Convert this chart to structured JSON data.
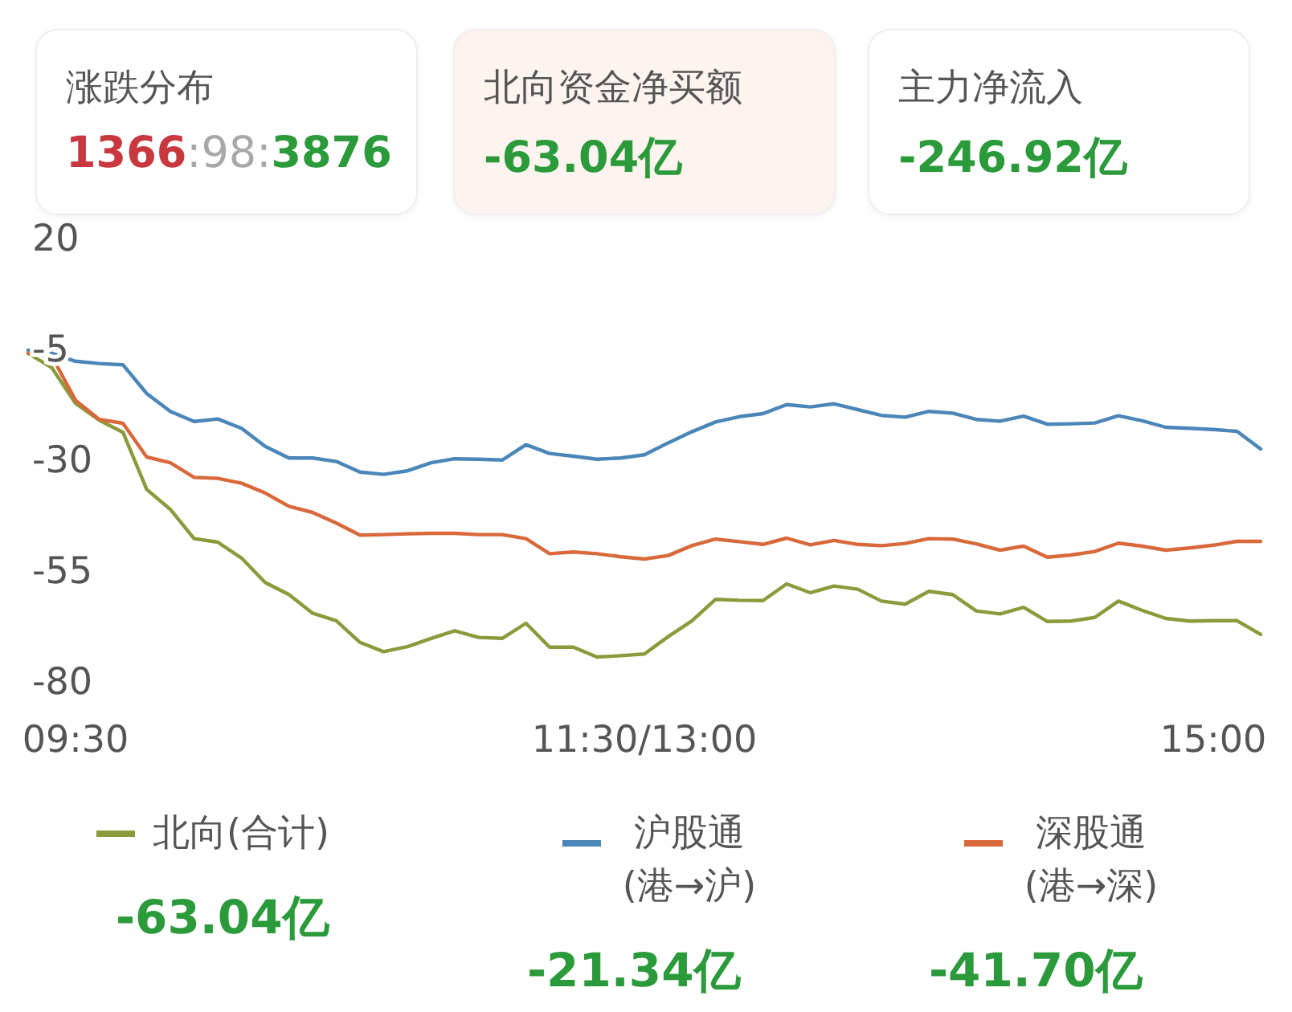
{
  "chart_data": [
    {
      "type": "other",
      "title": "涨跌分布",
      "annotations": [
        "1366",
        ":98:",
        "3876"
      ]
    },
    {
      "type": "other",
      "title": "北向资金净买额",
      "annotations": [
        "-63.04亿"
      ]
    },
    {
      "type": "other",
      "title": "主力净流入",
      "annotations": [
        "-246.92亿"
      ]
    },
    {
      "type": "line",
      "categories": [
        null,
        null,
        "09:30",
        null,
        null,
        null,
        null,
        null,
        null,
        null,
        null,
        null,
        null,
        null,
        null,
        null,
        null,
        null,
        null,
        null,
        null,
        null,
        null,
        null,
        null,
        null,
        "11:30/13:00",
        null,
        null,
        null,
        null,
        null,
        null,
        null,
        null,
        null,
        null,
        null,
        null,
        null,
        null,
        null,
        null,
        null,
        null,
        null,
        null,
        null,
        null,
        null,
        "15:00",
        null,
        null
      ],
      "ylim": [
        -80,
        20
      ],
      "yticks": [
        20,
        -5,
        -30,
        -55,
        -80
      ],
      "legend": "bottom",
      "marker": "none",
      "line_style": "solid",
      "annotations": [
        "-63.04亿",
        "-21.34亿",
        "-41.70亿"
      ],
      "series": [
        {
          "name": "北向(合计)",
          "color": "#8c9a3c",
          "values": [
            -5.7,
            -9.0,
            -17.0,
            -20.8,
            -23.5,
            -36.4,
            -40.9,
            -47.5,
            -48.3,
            -51.9,
            -57.4,
            -60.1,
            -64.3,
            -66.0,
            -70.9,
            -73.0,
            -71.9,
            -70.0,
            -68.3,
            -69.8,
            -70.0,
            -66.6,
            -72.0,
            -72.0,
            -74.2,
            -73.9,
            -73.5,
            -69.6,
            -66.1,
            -61.2,
            -61.4,
            -61.5,
            -57.7,
            -59.7,
            -58.2,
            -58.9,
            -61.6,
            -62.3,
            -59.4,
            -60.1,
            -63.8,
            -64.5,
            -63.0,
            -66.2,
            -66.1,
            -65.3,
            -61.6,
            -63.7,
            -65.5,
            -66.1,
            -66.0,
            -66.0,
            -69.1
          ]
        },
        {
          "name": "沪股通(港→沪)",
          "color": "#4a86b8",
          "values": [
            -5.0,
            -5.7,
            -7.5,
            -8.0,
            -8.3,
            -14.8,
            -18.8,
            -21.1,
            -20.5,
            -22.6,
            -26.7,
            -29.3,
            -29.3,
            -30.1,
            -32.5,
            -33.0,
            -32.2,
            -30.4,
            -29.5,
            -29.6,
            -29.8,
            -26.3,
            -28.3,
            -28.9,
            -29.6,
            -29.3,
            -28.6,
            -25.9,
            -23.4,
            -21.2,
            -20.0,
            -19.3,
            -17.3,
            -17.8,
            -17.1,
            -18.4,
            -19.7,
            -20.1,
            -18.8,
            -19.2,
            -20.6,
            -21.0,
            -19.9,
            -21.7,
            -21.6,
            -21.4,
            -19.8,
            -20.9,
            -22.4,
            -22.6,
            -22.9,
            -23.3,
            -27.3
          ]
        },
        {
          "name": "深股通(港→深)",
          "color": "#d9683a",
          "values": [
            -5.7,
            -6.4,
            -16.3,
            -20.6,
            -21.5,
            -29.1,
            -30.4,
            -33.7,
            -33.9,
            -35.0,
            -37.2,
            -40.2,
            -41.6,
            -44.0,
            -46.7,
            -46.6,
            -46.4,
            -46.3,
            -46.3,
            -46.6,
            -46.6,
            -47.5,
            -50.9,
            -50.5,
            -50.9,
            -51.6,
            -52.1,
            -51.3,
            -49.1,
            -47.6,
            -48.2,
            -48.8,
            -47.4,
            -48.9,
            -47.9,
            -48.8,
            -49.1,
            -48.6,
            -47.5,
            -47.6,
            -48.7,
            -50.1,
            -49.2,
            -51.7,
            -51.2,
            -50.4,
            -48.5,
            -49.2,
            -50.1,
            -49.6,
            -49.0,
            -48.1,
            -48.1
          ]
        }
      ]
    }
  ]
}
